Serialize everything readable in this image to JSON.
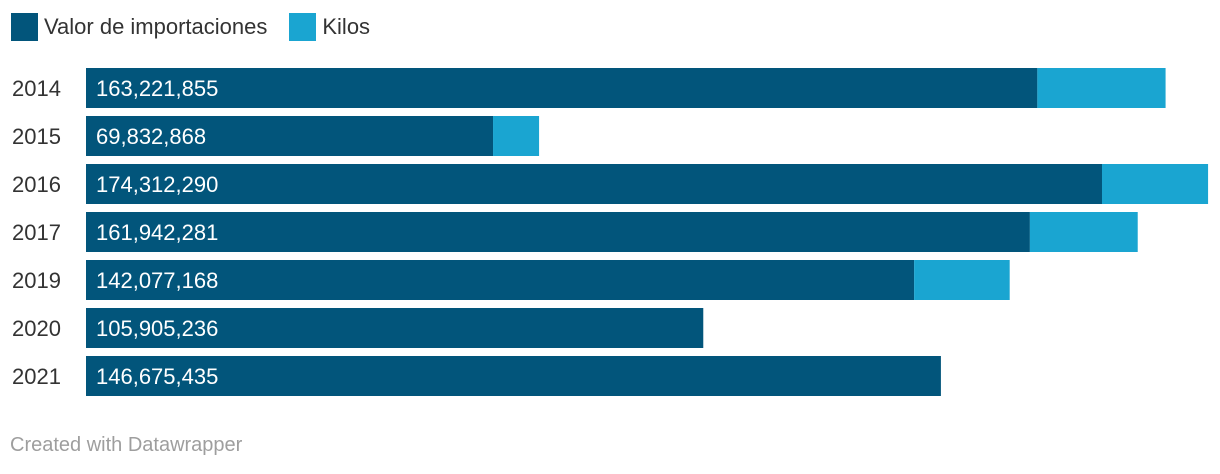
{
  "legend": {
    "items": [
      {
        "label": "Valor de importaciones",
        "color": "#02557b"
      },
      {
        "label": "Kilos",
        "color": "#1aa5d1"
      }
    ]
  },
  "chart_data": {
    "type": "bar",
    "orientation": "horizontal",
    "stacked": true,
    "categories": [
      "2014",
      "2015",
      "2016",
      "2017",
      "2019",
      "2020",
      "2021"
    ],
    "series": [
      {
        "name": "Valor de importaciones",
        "values": [
          163221855,
          69832868,
          174312290,
          161942281,
          142077168,
          105905236,
          146675435
        ],
        "value_labels": [
          "163,221,855",
          "69,832,868",
          "174,312,290",
          "161,942,281",
          "142,077,168",
          "105,905,236",
          "146,675,435"
        ],
        "color": "#02557b"
      },
      {
        "name": "Kilos",
        "values": [
          22000000,
          7900000,
          18200000,
          18500000,
          16400000,
          0,
          0
        ],
        "color": "#1aa5d1"
      }
    ],
    "xlim": [
      0,
      192500000
    ],
    "grid": false,
    "legend_position": "top-left"
  },
  "footer": {
    "credit": "Created with Datawrapper"
  }
}
